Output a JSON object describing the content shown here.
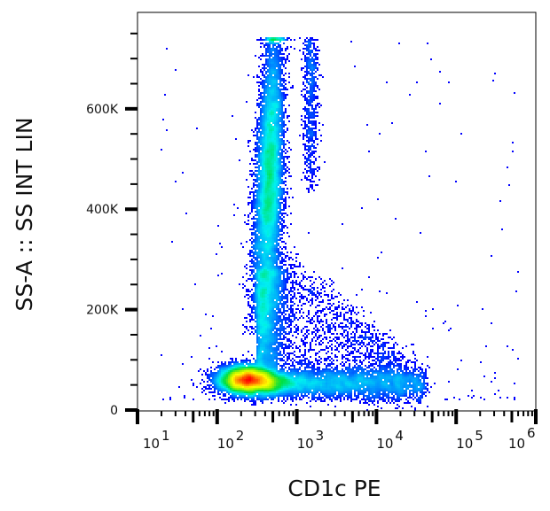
{
  "chart_data": {
    "type": "heatmap",
    "subtype": "flow-cytometry density dot plot",
    "xlabel": "CD1c PE",
    "ylabel": "SS-A :: SS INT LIN",
    "x_scale": "log",
    "xlim": [
      10,
      1000000
    ],
    "ylim": [
      0,
      792000
    ],
    "x_ticks": [
      {
        "base": "10",
        "exp": "1",
        "value": 10
      },
      {
        "base": "10",
        "exp": "2",
        "value": 100
      },
      {
        "base": "10",
        "exp": "3",
        "value": 1000
      },
      {
        "base": "10",
        "exp": "4",
        "value": 10000
      },
      {
        "base": "10",
        "exp": "5",
        "value": 100000
      },
      {
        "base": "10",
        "exp": "6",
        "value": 1000000
      }
    ],
    "y_ticks": [
      {
        "label": "0",
        "value": 0
      },
      {
        "label": "200K",
        "value": 200000
      },
      {
        "label": "400K",
        "value": 400000
      },
      {
        "label": "600K",
        "value": 600000
      }
    ],
    "y_minor_step": 50000,
    "grid": false,
    "legend": "none",
    "color_map": [
      "#0000ff",
      "#0090ff",
      "#00f0f0",
      "#00e040",
      "#a0f000",
      "#ffff00",
      "#ff9000",
      "#ff0000"
    ],
    "saturation_y": 740000,
    "populations": [
      {
        "name": "low-SS CD1c-dim cluster",
        "x_center": 250,
        "x_spread_decades": 0.16,
        "y_center": 60000,
        "y_spread": 14000,
        "events": 9000
      },
      {
        "name": "high-SS vertical streak",
        "x_center_bottom": 355,
        "x_center_top": 525,
        "x_spread_decades": 0.08,
        "y_center": 450000,
        "y_spread": 150000,
        "events": 9000
      },
      {
        "name": "bridge",
        "x_center": 400,
        "x_spread_decades": 0.12,
        "y_range": [
          90000,
          280000
        ],
        "events": 2200
      },
      {
        "name": "CD1c+ horizontal tail",
        "x_range": [
          400,
          40000
        ],
        "y_center": 52000,
        "y_spread": 12000,
        "events": 4500
      },
      {
        "name": "diagonal scatter",
        "x_range": [
          600,
          20000
        ],
        "y_range": [
          60000,
          320000
        ],
        "events": 1600
      },
      {
        "name": "secondary streak",
        "x_center": 1500,
        "x_spread_decades": 0.05,
        "y_range": [
          430000,
          740000
        ],
        "events": 700
      },
      {
        "name": "sparse background",
        "x_range": [
          20,
          600000
        ],
        "y_range": [
          20000,
          740000
        ],
        "events": 250
      }
    ]
  }
}
